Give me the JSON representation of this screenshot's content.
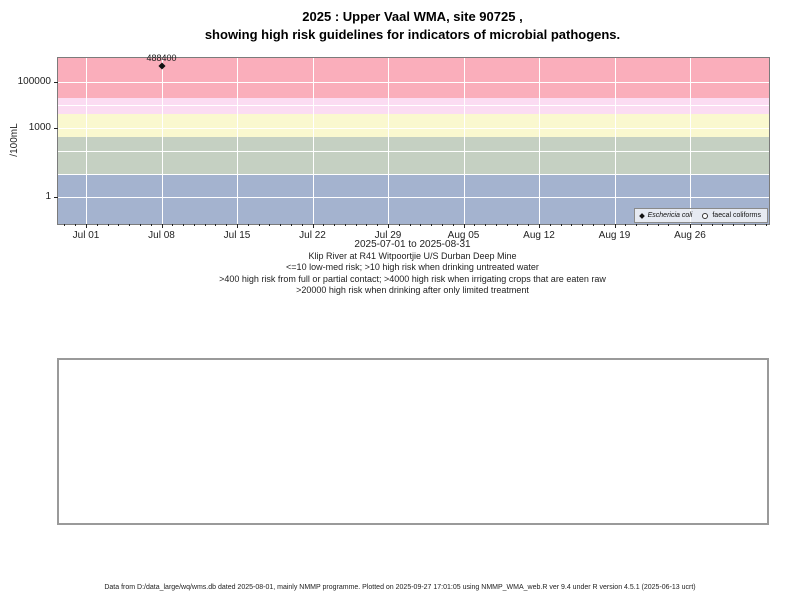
{
  "page": {
    "title_line1": "2025 : Upper Vaal WMA, site 90725 ,",
    "title_line2": "showing high risk guidelines for indicators of microbial pathogens.",
    "footer": "Data from D:/data_large/wq/wms.db dated 2025-08-01, mainly NMMP programme. Plotted on 2025-09-27 17:01:05 using NMMP_WMA_web.R ver 9.4 under R version 4.5.1 (2025-06-13 ucrt)"
  },
  "caption": {
    "xlabel": "2025-07-01 to 2025-08-31",
    "site_description": "Klip River at R41 Witpoortjie U/S Durban Deep Mine",
    "guideline_lines": [
      "<=10 low-med risk; >10 high risk when drinking untreated water",
      ">400 high risk from full or partial contact; >4000 high risk when irrigating crops that are eaten raw",
      ">20000 high risk when drinking after only limited treatment"
    ]
  },
  "chart_data": {
    "type": "scatter",
    "title": "2025 : Upper Vaal WMA, site 90725 , showing high risk guidelines for indicators of microbial pathogens.",
    "xlabel": "2025-07-01 to 2025-08-31",
    "ylabel": "/100mL",
    "y_scale": "log10",
    "ylim": [
      0.1,
      1000000
    ],
    "y_ticks": [
      1,
      1000,
      100000
    ],
    "x_start_date": "2025-07-01",
    "x_end_date": "2025-08-31",
    "x_tick_labels": [
      "Jul 01",
      "Jul 08",
      "Jul 15",
      "Jul 22",
      "Jul 29",
      "Aug 05",
      "Aug 12",
      "Aug 19",
      "Aug 26"
    ],
    "grid": "white gridlines at powers of 10 and at weekly date ticks, daily minor ticks",
    "legend_position": "bottom-right",
    "series": [
      {
        "name": "Eschericia coli",
        "marker": "filled-diamond",
        "color": "#000000",
        "italic": true,
        "points": [
          {
            "date": "2025-07-08",
            "value": 488400,
            "label": "488400"
          }
        ]
      },
      {
        "name": "faecal coliforms",
        "marker": "open-circle",
        "color": "#000000",
        "italic": false,
        "points": []
      }
    ],
    "risk_bands": [
      {
        "from": null,
        "to": 10,
        "color": "#A4B3CF",
        "meaning": "<=10 low-med risk"
      },
      {
        "from": 10,
        "to": 400,
        "color": "#C5D0C2",
        "meaning": ">10 high risk when drinking untreated water"
      },
      {
        "from": 400,
        "to": 4000,
        "color": "#FAF8CF",
        "meaning": ">400 high risk from full or partial contact"
      },
      {
        "from": 4000,
        "to": 20000,
        "color": "#FBDCF2",
        "meaning": ">4000 high risk when irrigating crops that are eaten raw"
      },
      {
        "from": 20000,
        "to": null,
        "color": "#FAAEBB",
        "meaning": ">20000 high risk when drinking after only limited treatment"
      }
    ]
  }
}
